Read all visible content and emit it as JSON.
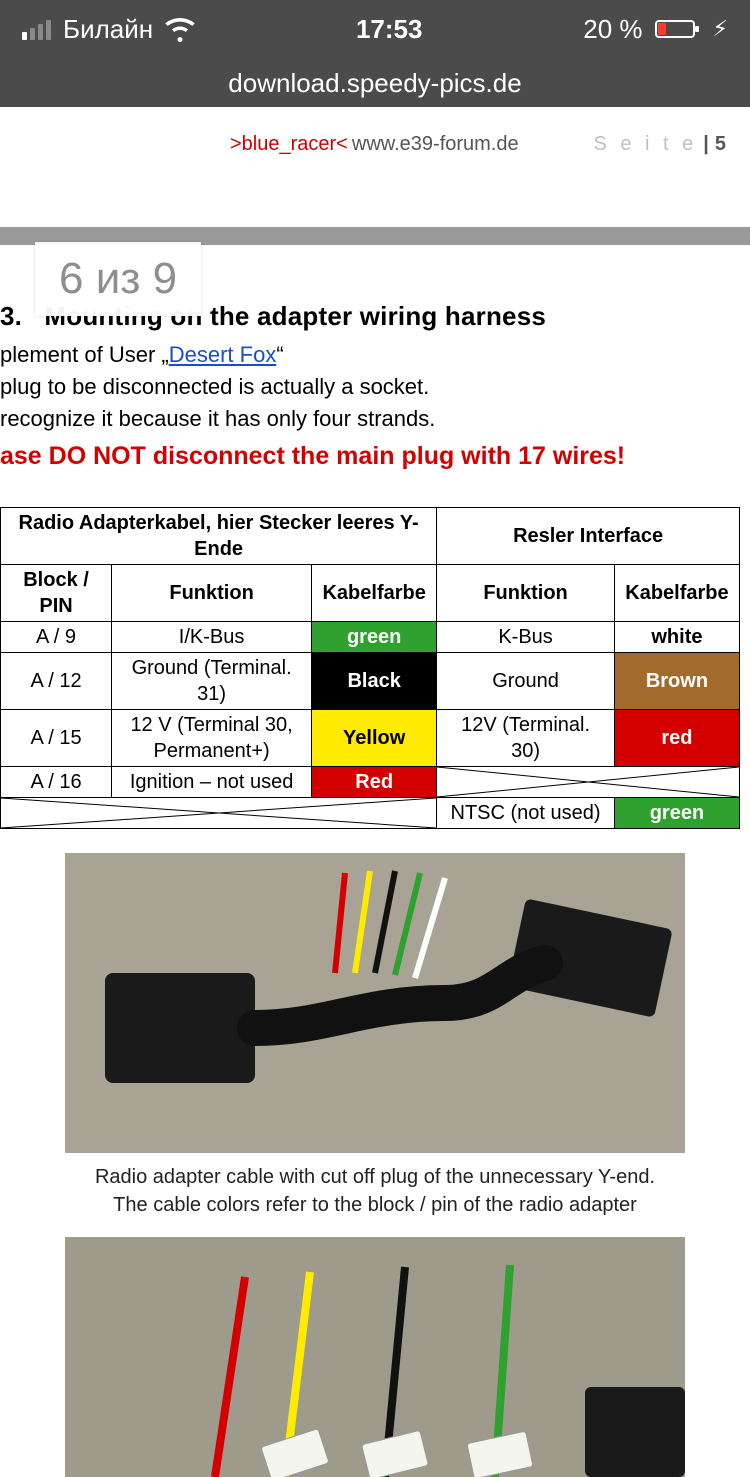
{
  "status_bar": {
    "carrier": "Билайн",
    "time": "17:53",
    "battery_pct": "20 %",
    "colors": {
      "bg": "#4b4b4b",
      "fg": "#ffffff"
    }
  },
  "url_bar": {
    "url": "download.speedy-pics.de"
  },
  "page_counter": {
    "text": "6 из 9"
  },
  "doc_header": {
    "author": ">blue_racer<",
    "site": " www.e39-forum.de",
    "seite_label": "S e i t e",
    "seite_sep": " | ",
    "page_number": "5"
  },
  "content": {
    "section_no": "3.",
    "section_title": "Mounting on the adapter wiring harness",
    "line1_a": "plement of User „",
    "line1_link": "Desert Fox",
    "line1_b": "“",
    "line2": "plug to be disconnected is actually a socket.",
    "line3": "recognize it because it has only four strands.",
    "warning": "ase DO NOT disconnect the main plug with 17 wires!"
  },
  "table": {
    "group_left": "Radio Adapterkabel, hier Stecker leeres Y-Ende",
    "group_right": "Resler Interface",
    "col_block": "Block / PIN",
    "col_funktion": "Funktion",
    "col_kabelfarbe": "Kabelfarbe",
    "cell_colors": {
      "green": {
        "bg": "#2ea12e",
        "fg": "#ffffff"
      },
      "black": {
        "bg": "#000000",
        "fg": "#ffffff"
      },
      "yellow": {
        "bg": "#ffeb00",
        "fg": "#000000"
      },
      "red": {
        "bg": "#d40000",
        "fg": "#ffffff"
      },
      "white": {
        "bg": "#ffffff",
        "fg": "#000000"
      },
      "brown": {
        "bg": "#a36a2b",
        "fg": "#ffffff"
      }
    },
    "rows": [
      {
        "block": "A / 9",
        "funktion_l": "I/K-Bus",
        "farbe_l": "green",
        "farbe_l_class": "green",
        "funktion_r": "K-Bus",
        "farbe_r": "white",
        "farbe_r_class": "white"
      },
      {
        "block": "A / 12",
        "funktion_l": "Ground (Terminal. 31)",
        "farbe_l": "Black",
        "farbe_l_class": "black",
        "funktion_r": "Ground",
        "farbe_r": "Brown",
        "farbe_r_class": "brown"
      },
      {
        "block": "A / 15",
        "funktion_l": "12 V (Terminal 30, Permanent+)",
        "farbe_l": "Yellow",
        "farbe_l_class": "yellow",
        "funktion_r": "12V (Terminal. 30)",
        "farbe_r": "red",
        "farbe_r_class": "red"
      },
      {
        "block": "A / 16",
        "funktion_l": "Ignition – not used",
        "farbe_l": "Red",
        "farbe_l_class": "red",
        "funktion_r": "__crossed__",
        "farbe_r": "__crossed__",
        "farbe_r_class": ""
      }
    ],
    "extra_row": {
      "funktion_r": "NTSC (not used)",
      "farbe_r": "green",
      "farbe_r_class": "green"
    }
  },
  "figures": {
    "caption1_line1": "Radio adapter cable with cut off plug of the unnecessary Y-end.",
    "caption1_line2": "The cable colors refer to the block / pin of the radio adapter"
  }
}
